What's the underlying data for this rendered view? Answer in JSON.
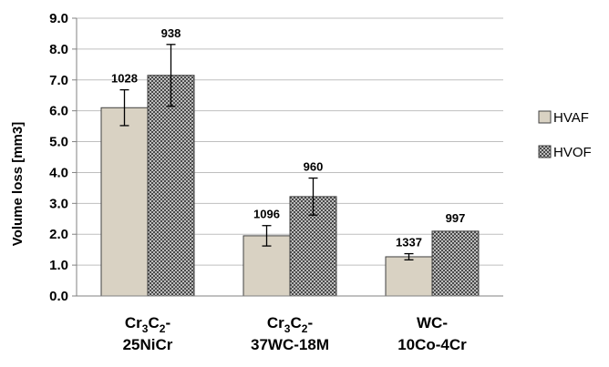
{
  "chart_data": {
    "type": "bar",
    "title": "",
    "xlabel": "",
    "ylabel": "Volume loss [mm3]",
    "ylim": [
      0,
      9
    ],
    "yticks": [
      "0.0",
      "1.0",
      "2.0",
      "3.0",
      "4.0",
      "5.0",
      "6.0",
      "7.0",
      "8.0",
      "9.0"
    ],
    "grid": true,
    "legend_position": "right",
    "categories": [
      {
        "lines": [
          [
            {
              "t": "Cr"
            },
            {
              "t": "3",
              "sub": true
            },
            {
              "t": "C"
            },
            {
              "t": "2",
              "sub": true
            },
            {
              "t": "-"
            }
          ],
          [
            {
              "t": "25NiCr"
            }
          ]
        ]
      },
      {
        "lines": [
          [
            {
              "t": "Cr"
            },
            {
              "t": "3",
              "sub": true
            },
            {
              "t": "C"
            },
            {
              "t": "2",
              "sub": true
            },
            {
              "t": "-"
            }
          ],
          [
            {
              "t": "37WC-18M"
            }
          ]
        ]
      },
      {
        "lines": [
          [
            {
              "t": "WC-"
            }
          ],
          [
            {
              "t": "10Co-4Cr"
            }
          ]
        ]
      }
    ],
    "series": [
      {
        "name": "HVAF",
        "color": "#d9d2c3",
        "pattern": "solid",
        "values": [
          6.1,
          1.95,
          1.27
        ],
        "errors": [
          0.58,
          0.33,
          0.1
        ],
        "labels": [
          "1028",
          "1096",
          "1337"
        ]
      },
      {
        "name": "HVOF",
        "color": "#555555",
        "pattern": "checker",
        "values": [
          7.15,
          3.22,
          2.1
        ],
        "errors": [
          1.0,
          0.6,
          null
        ],
        "labels": [
          "938",
          "960",
          "997"
        ]
      }
    ]
  }
}
